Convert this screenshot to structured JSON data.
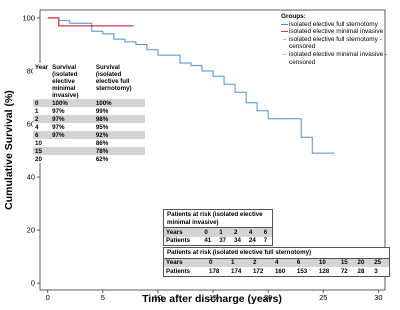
{
  "chart_data": {
    "type": "step",
    "xlabel": "Time after discharge (years)",
    "ylabel": "Cumulative Survival (%)",
    "xlim": [
      -0.7,
      30.6
    ],
    "ylim": [
      -2.6,
      103
    ],
    "xticks": [
      0,
      5,
      10,
      15,
      20,
      25,
      30
    ],
    "yticks": [
      0,
      20,
      40,
      60,
      80,
      100
    ],
    "legend_title": "Groups:",
    "series": [
      {
        "name": "isolated elective full sternotomy",
        "censored_name": "isolated elective full sternotomy - censored",
        "color": "#4a90d9",
        "x": [
          0,
          1,
          1,
          2,
          2,
          4,
          4,
          5,
          5,
          6,
          6,
          7,
          7,
          8,
          8,
          9,
          9,
          10,
          10,
          12,
          12,
          13,
          13,
          14,
          14,
          15,
          15,
          16,
          16,
          17,
          17,
          18,
          18,
          19,
          19,
          20,
          20,
          22,
          22,
          23,
          23,
          24,
          24,
          26
        ],
        "values": [
          100,
          100,
          99,
          99,
          98,
          98,
          95,
          95,
          94,
          94,
          92,
          92,
          91,
          91,
          90,
          90,
          88,
          88,
          86,
          86,
          83,
          83,
          82,
          82,
          80,
          80,
          78,
          78,
          75,
          75,
          72,
          72,
          68,
          68,
          65,
          65,
          62,
          62,
          62,
          62,
          55,
          55,
          49,
          49
        ]
      },
      {
        "name": "isolated elective minimal invasive",
        "censored_name": "isolated elective minimal invasive - censored",
        "color": "#d9344a",
        "x": [
          0,
          1,
          1,
          7.8
        ],
        "values": [
          100,
          100,
          97,
          97
        ]
      }
    ]
  },
  "survival_table": {
    "header": [
      "Year",
      "Survival (isolated elective minimal invasive)",
      "Survival (isolated elective full sternotomy)"
    ],
    "rows": [
      [
        "0",
        "100%",
        "100%"
      ],
      [
        "1",
        "97%",
        "99%"
      ],
      [
        "2",
        "97%",
        "98%"
      ],
      [
        "4",
        "97%",
        "95%"
      ],
      [
        "6",
        "97%",
        "92%"
      ],
      [
        "10",
        null,
        "86%"
      ],
      [
        "15",
        null,
        "78%"
      ],
      [
        "20",
        null,
        "62%"
      ]
    ]
  },
  "at_risk": [
    {
      "title": "Patients at risk (isolated elective minimal invasive)",
      "row_labels": [
        "Years",
        "Patients"
      ],
      "years": [
        0,
        1,
        2,
        4,
        6
      ],
      "patients": [
        41,
        37,
        34,
        24,
        7
      ]
    },
    {
      "title": "Patients at risk (isolated elective full sternotomy)",
      "row_labels": [
        "Years",
        "Patients"
      ],
      "years": [
        0,
        1,
        2,
        4,
        6,
        10,
        15,
        20,
        25
      ],
      "patients": [
        178,
        174,
        172,
        160,
        153,
        128,
        72,
        28,
        3
      ]
    }
  ]
}
